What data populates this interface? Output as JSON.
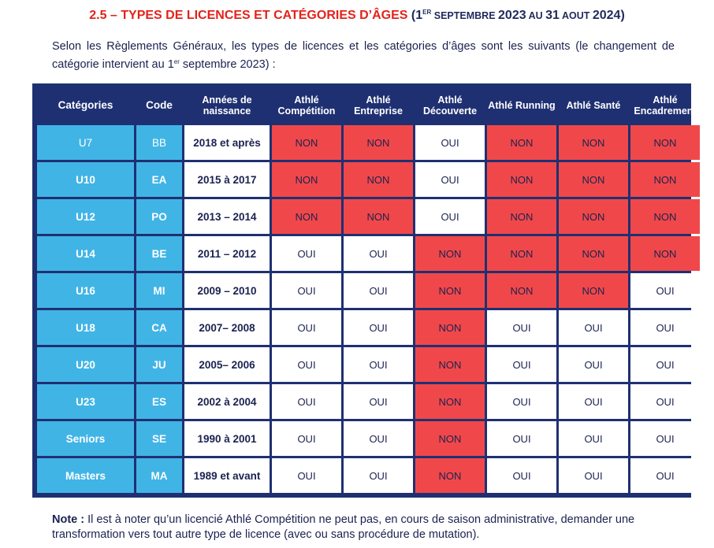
{
  "title": {
    "number_part": "2.5 – TYPES DE LICENCES ET CATÉGORIES D’ÂGES",
    "paren_open": "(1",
    "sup": "ER",
    "sc_1": " SEPTEMBRE ",
    "year_1": "2023",
    "sc_2": " AU ",
    "date_2": "31",
    "sc_3": " AOUT ",
    "year_2": "2024)"
  },
  "intro": {
    "text_before": "Selon les Règlements Généraux, les types de licences et les catégories d’âges sont les suivants (le changement de catégorie intervient au 1",
    "sup": "er",
    "text_after": " septembre 2023) :"
  },
  "table": {
    "headers": [
      "Catégories",
      "Code",
      "Années de naissance",
      "Athlé Compétition",
      "Athlé Entreprise",
      "Athlé Découverte",
      "Athlé Running",
      "Athlé Santé",
      "Athlé Encadrement"
    ],
    "rows": [
      {
        "cat": "U7",
        "code": "BB",
        "years": "2018 et après",
        "values": [
          "NON",
          "NON",
          "OUI",
          "NON",
          "NON",
          "NON"
        ]
      },
      {
        "cat": "U10",
        "code": "EA",
        "years": "2015 à 2017",
        "values": [
          "NON",
          "NON",
          "OUI",
          "NON",
          "NON",
          "NON"
        ]
      },
      {
        "cat": "U12",
        "code": "PO",
        "years": "2013 – 2014",
        "values": [
          "NON",
          "NON",
          "OUI",
          "NON",
          "NON",
          "NON"
        ]
      },
      {
        "cat": "U14",
        "code": "BE",
        "years": "2011 – 2012",
        "values": [
          "OUI",
          "OUI",
          "NON",
          "NON",
          "NON",
          "NON"
        ]
      },
      {
        "cat": "U16",
        "code": "MI",
        "years": "2009 – 2010",
        "values": [
          "OUI",
          "OUI",
          "NON",
          "NON",
          "NON",
          "OUI"
        ]
      },
      {
        "cat": "U18",
        "code": "CA",
        "years": "2007– 2008",
        "values": [
          "OUI",
          "OUI",
          "NON",
          "OUI",
          "OUI",
          "OUI"
        ]
      },
      {
        "cat": "U20",
        "code": "JU",
        "years": "2005– 2006",
        "values": [
          "OUI",
          "OUI",
          "NON",
          "OUI",
          "OUI",
          "OUI"
        ]
      },
      {
        "cat": "U23",
        "code": "ES",
        "years": "2002 à 2004",
        "values": [
          "OUI",
          "OUI",
          "NON",
          "OUI",
          "OUI",
          "OUI"
        ]
      },
      {
        "cat": "Seniors",
        "code": "SE",
        "years": "1990 à 2001",
        "values": [
          "OUI",
          "OUI",
          "NON",
          "OUI",
          "OUI",
          "OUI"
        ]
      },
      {
        "cat": "Masters",
        "code": "MA",
        "years": "1989 et avant",
        "values": [
          "OUI",
          "OUI",
          "NON",
          "OUI",
          "OUI",
          "OUI"
        ]
      }
    ]
  },
  "colors": {
    "title_red": "#e2231a",
    "header_navy": "#1f3072",
    "category_blue": "#41b4e6",
    "non_red": "#f0484a"
  },
  "note": {
    "label": "Note :",
    "text": " Il est à noter qu’un licencié Athlé Compétition ne peut pas, en cours de saison administrative, demander une transformation vers tout autre type de licence (avec ou sans procédure de mutation)."
  }
}
